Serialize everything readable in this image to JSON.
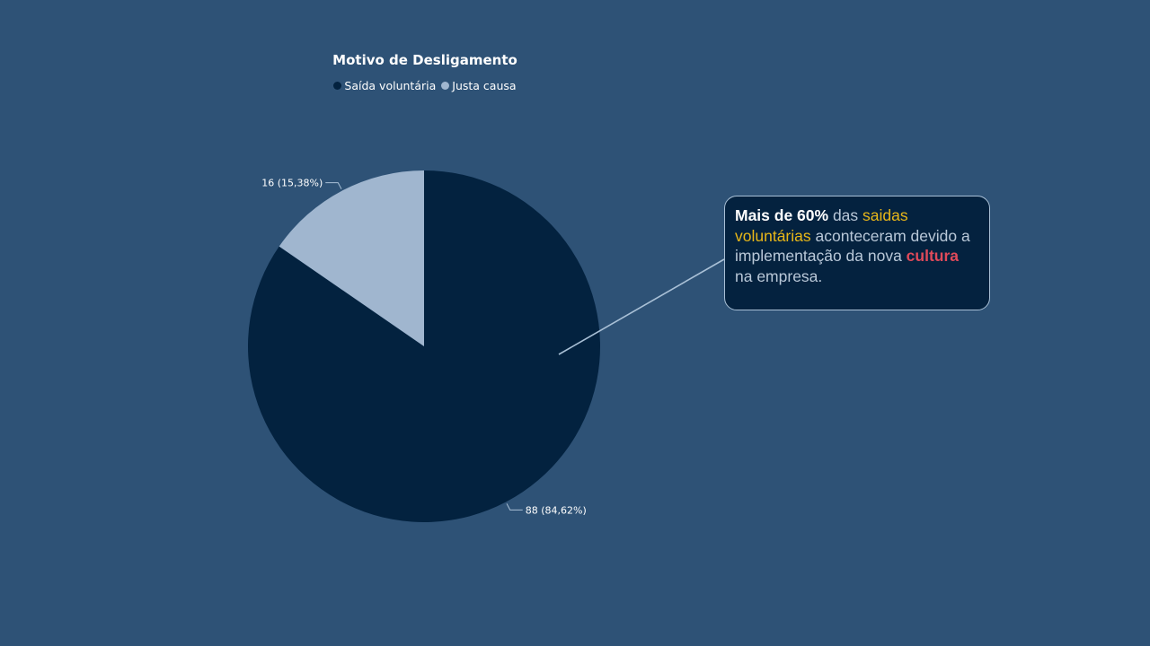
{
  "chart_data": {
    "type": "pie",
    "title": "Motivo de Desligamento",
    "categories": [
      "Saída voluntária",
      "Justa causa"
    ],
    "values": [
      88,
      16
    ],
    "data_labels": [
      "88 (84,62%)",
      "16 (15,38%)"
    ],
    "colors": [
      "#03223f",
      "#a0b6cf"
    ],
    "legend_position": "top-center",
    "start_angle_deg": 0,
    "direction": "clockwise"
  },
  "annotation": {
    "part1": "Mais de 60%",
    "part2": " das ",
    "part3": "saidas voluntárias",
    "part4": " aconteceram devido a implementação da nova ",
    "part5": "cultura",
    "part6": " na empresa."
  },
  "colors": {
    "background": "#2e5276",
    "callout_bg": "#04223f",
    "highlight_yellow": "#e8b718",
    "highlight_red": "#e04a5a"
  }
}
